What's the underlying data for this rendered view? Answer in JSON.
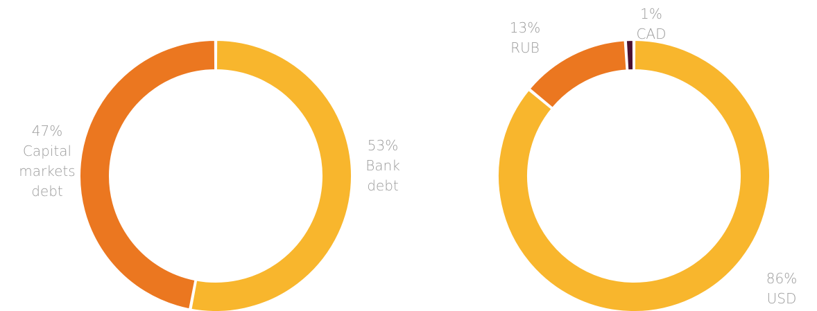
{
  "chart_data": [
    {
      "type": "pie",
      "series": [
        {
          "name": "Bank debt",
          "label_lines": [
            "53%",
            "Bank",
            "debt"
          ],
          "value": 53,
          "color": "#F8B62D"
        },
        {
          "name": "Capital markets debt",
          "label_lines": [
            "47%",
            "Capital",
            "markets",
            "debt"
          ],
          "value": 47,
          "color": "#EB7720"
        }
      ]
    },
    {
      "type": "pie",
      "series": [
        {
          "name": "USD",
          "label_lines": [
            "86%",
            "USD"
          ],
          "value": 86,
          "color": "#F8B62D"
        },
        {
          "name": "RUB",
          "label_lines": [
            "13%",
            "RUB"
          ],
          "value": 13,
          "color": "#EB7720"
        },
        {
          "name": "CAD",
          "label_lines": [
            "1%",
            "CAD"
          ],
          "value": 1,
          "color": "#4B1030"
        }
      ]
    }
  ]
}
